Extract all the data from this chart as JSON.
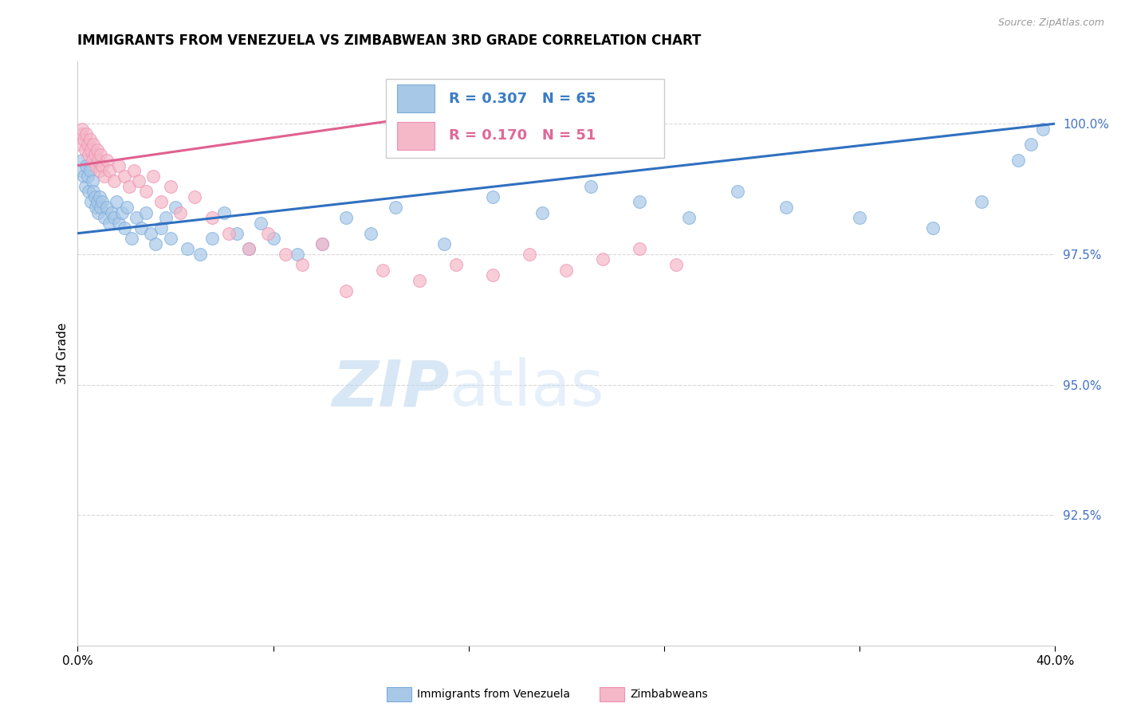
{
  "title": "IMMIGRANTS FROM VENEZUELA VS ZIMBABWEAN 3RD GRADE CORRELATION CHART",
  "source": "Source: ZipAtlas.com",
  "ylabel": "3rd Grade",
  "xlim": [
    0.0,
    40.0
  ],
  "ylim": [
    90.0,
    101.2
  ],
  "yticks": [
    92.5,
    95.0,
    97.5,
    100.0
  ],
  "ytick_labels": [
    "92.5%",
    "95.0%",
    "97.5%",
    "100.0%"
  ],
  "legend_blue_r": "R = 0.307",
  "legend_blue_n": "N = 65",
  "legend_pink_r": "R = 0.170",
  "legend_pink_n": "N = 51",
  "blue_color": "#a8c8e8",
  "pink_color": "#f4b8c8",
  "blue_edge_color": "#7aacda",
  "pink_edge_color": "#f090b0",
  "blue_line_color": "#3070c0",
  "pink_line_color": "#e06090",
  "blue_line_y0": 97.9,
  "blue_line_y1": 100.0,
  "pink_line_y0": 99.2,
  "pink_line_y1": 100.4,
  "watermark_text": "ZIPatlas",
  "watermark_color": "#cce0f0",
  "background_color": "#ffffff",
  "grid_color": "#d8d8d8",
  "blue_scatter_x": [
    0.15,
    0.2,
    0.25,
    0.3,
    0.35,
    0.4,
    0.45,
    0.5,
    0.55,
    0.6,
    0.65,
    0.7,
    0.75,
    0.8,
    0.85,
    0.9,
    0.95,
    1.0,
    1.1,
    1.2,
    1.3,
    1.4,
    1.5,
    1.6,
    1.7,
    1.8,
    1.9,
    2.0,
    2.2,
    2.4,
    2.6,
    2.8,
    3.0,
    3.2,
    3.4,
    3.6,
    3.8,
    4.0,
    4.5,
    5.0,
    5.5,
    6.0,
    6.5,
    7.0,
    7.5,
    8.0,
    9.0,
    10.0,
    11.0,
    12.0,
    13.0,
    15.0,
    17.0,
    19.0,
    21.0,
    23.0,
    25.0,
    27.0,
    29.0,
    32.0,
    35.0,
    37.0,
    38.5,
    39.0,
    39.5
  ],
  "blue_scatter_y": [
    99.1,
    99.3,
    99.0,
    98.8,
    99.2,
    99.0,
    98.7,
    99.1,
    98.5,
    98.9,
    98.7,
    98.6,
    98.4,
    98.5,
    98.3,
    98.6,
    98.4,
    98.5,
    98.2,
    98.4,
    98.1,
    98.3,
    98.2,
    98.5,
    98.1,
    98.3,
    98.0,
    98.4,
    97.8,
    98.2,
    98.0,
    98.3,
    97.9,
    97.7,
    98.0,
    98.2,
    97.8,
    98.4,
    97.6,
    97.5,
    97.8,
    98.3,
    97.9,
    97.6,
    98.1,
    97.8,
    97.5,
    97.7,
    98.2,
    97.9,
    98.4,
    97.7,
    98.6,
    98.3,
    98.8,
    98.5,
    98.2,
    98.7,
    98.4,
    98.2,
    98.0,
    98.5,
    99.3,
    99.6,
    99.9
  ],
  "pink_scatter_x": [
    0.1,
    0.15,
    0.2,
    0.25,
    0.3,
    0.35,
    0.4,
    0.45,
    0.5,
    0.55,
    0.6,
    0.65,
    0.7,
    0.75,
    0.8,
    0.85,
    0.9,
    0.95,
    1.0,
    1.1,
    1.2,
    1.3,
    1.5,
    1.7,
    1.9,
    2.1,
    2.3,
    2.5,
    2.8,
    3.1,
    3.4,
    3.8,
    4.2,
    4.8,
    5.5,
    6.2,
    7.0,
    7.8,
    8.5,
    9.2,
    10.0,
    11.0,
    12.5,
    14.0,
    15.5,
    17.0,
    18.5,
    20.0,
    21.5,
    23.0,
    24.5
  ],
  "pink_scatter_y": [
    99.6,
    99.8,
    99.9,
    99.7,
    99.5,
    99.8,
    99.6,
    99.4,
    99.7,
    99.5,
    99.3,
    99.6,
    99.4,
    99.2,
    99.5,
    99.3,
    99.1,
    99.4,
    99.2,
    99.0,
    99.3,
    99.1,
    98.9,
    99.2,
    99.0,
    98.8,
    99.1,
    98.9,
    98.7,
    99.0,
    98.5,
    98.8,
    98.3,
    98.6,
    98.2,
    97.9,
    97.6,
    97.9,
    97.5,
    97.3,
    97.7,
    96.8,
    97.2,
    97.0,
    97.3,
    97.1,
    97.5,
    97.2,
    97.4,
    97.6,
    97.3
  ]
}
